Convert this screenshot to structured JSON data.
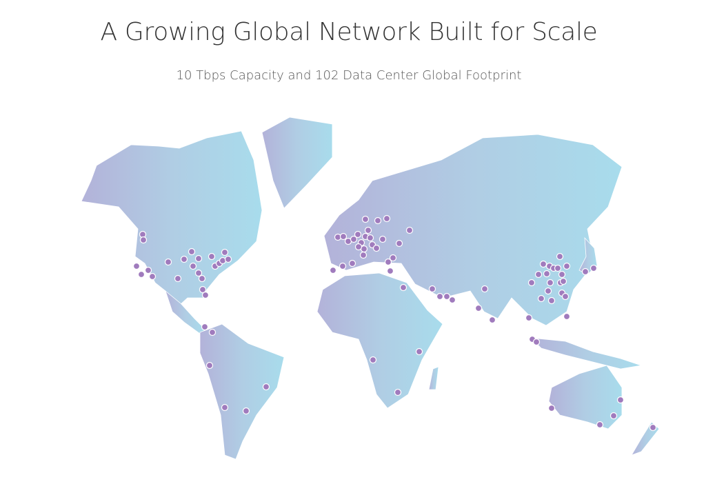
{
  "header": {
    "title": "A Growing Global Network Built for Scale",
    "subtitle": "10 Tbps Capacity and 102 Data Center Global Footprint"
  }
}
